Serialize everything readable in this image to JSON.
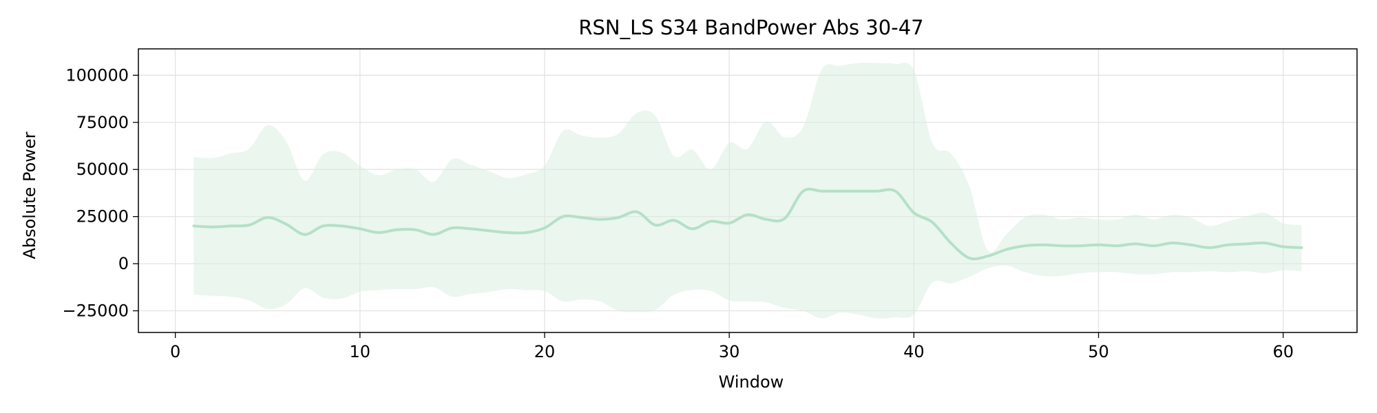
{
  "chart_data": {
    "type": "line",
    "title": "RSN_LS S34 BandPower Abs 30-47",
    "xlabel": "Window",
    "ylabel": "Absolute Power",
    "xlim": [
      -2,
      64
    ],
    "ylim": [
      -36500,
      114000
    ],
    "xticks": [
      0,
      10,
      20,
      30,
      40,
      50,
      60
    ],
    "yticks": [
      -25000,
      0,
      25000,
      50000,
      75000,
      100000
    ],
    "ytick_labels": [
      "−25000",
      "0",
      "25000",
      "50000",
      "75000",
      "100000"
    ],
    "grid": true,
    "colors": {
      "line": "#b5e0c6",
      "band": "#d8eedf"
    },
    "series": [
      {
        "x": [
          1,
          2,
          3,
          4,
          5,
          6,
          7,
          8,
          9,
          10,
          11,
          12,
          13,
          14,
          15,
          16,
          17,
          18,
          19,
          20,
          21,
          22,
          23,
          24,
          25,
          26,
          27,
          28,
          29,
          30,
          31,
          32,
          33,
          34,
          35,
          36,
          37,
          38,
          39,
          40,
          41,
          42,
          43,
          44,
          45,
          46,
          47,
          48,
          49,
          50,
          51,
          52,
          53,
          54,
          55,
          56,
          57,
          58,
          59,
          60,
          61
        ],
        "mean": [
          20000,
          19500,
          20000,
          20500,
          24500,
          21000,
          15500,
          20000,
          20000,
          18500,
          16500,
          18000,
          18000,
          15500,
          19000,
          18500,
          17500,
          16500,
          16500,
          19000,
          25000,
          24500,
          23500,
          24500,
          27500,
          20500,
          23000,
          18500,
          22500,
          21500,
          26000,
          23500,
          24000,
          38500,
          38500,
          38500,
          38500,
          38500,
          38500,
          27000,
          22000,
          11000,
          3000,
          4000,
          7500,
          9500,
          10000,
          9500,
          9500,
          10000,
          9500,
          10500,
          9500,
          11000,
          10000,
          8500,
          10000,
          10500,
          11000,
          9000,
          8500
        ],
        "upper": [
          56500,
          56000,
          58500,
          61000,
          73500,
          65000,
          44000,
          58000,
          59000,
          52000,
          47000,
          50000,
          50000,
          43500,
          55500,
          52500,
          49000,
          45500,
          47500,
          52000,
          70500,
          68000,
          67000,
          69000,
          80000,
          78500,
          57000,
          60500,
          50000,
          64000,
          61000,
          75500,
          67000,
          72500,
          103000,
          105000,
          106500,
          106500,
          106000,
          102500,
          64000,
          58500,
          41000,
          7000,
          15500,
          24500,
          26000,
          23500,
          24500,
          23500,
          23500,
          26000,
          23500,
          26000,
          24500,
          20000,
          22500,
          25000,
          27000,
          21500,
          20500
        ],
        "lower": [
          -16500,
          -17000,
          -17500,
          -19500,
          -24000,
          -21500,
          -13000,
          -18000,
          -18500,
          -15000,
          -14000,
          -13500,
          -13500,
          -12500,
          -17500,
          -16000,
          -15000,
          -13500,
          -14000,
          -14500,
          -20000,
          -19000,
          -20000,
          -25000,
          -25500,
          -24500,
          -16500,
          -14000,
          -14500,
          -19500,
          -20000,
          -20500,
          -23500,
          -25000,
          -29000,
          -26000,
          -27000,
          -29000,
          -28500,
          -27000,
          -10000,
          -10500,
          -7000,
          -2500,
          -1000,
          -4500,
          -6500,
          -6500,
          -5000,
          -4500,
          -4500,
          -5500,
          -5500,
          -4500,
          -4500,
          -4000,
          -4500,
          -4000,
          -5000,
          -3500,
          -4000
        ]
      }
    ]
  }
}
